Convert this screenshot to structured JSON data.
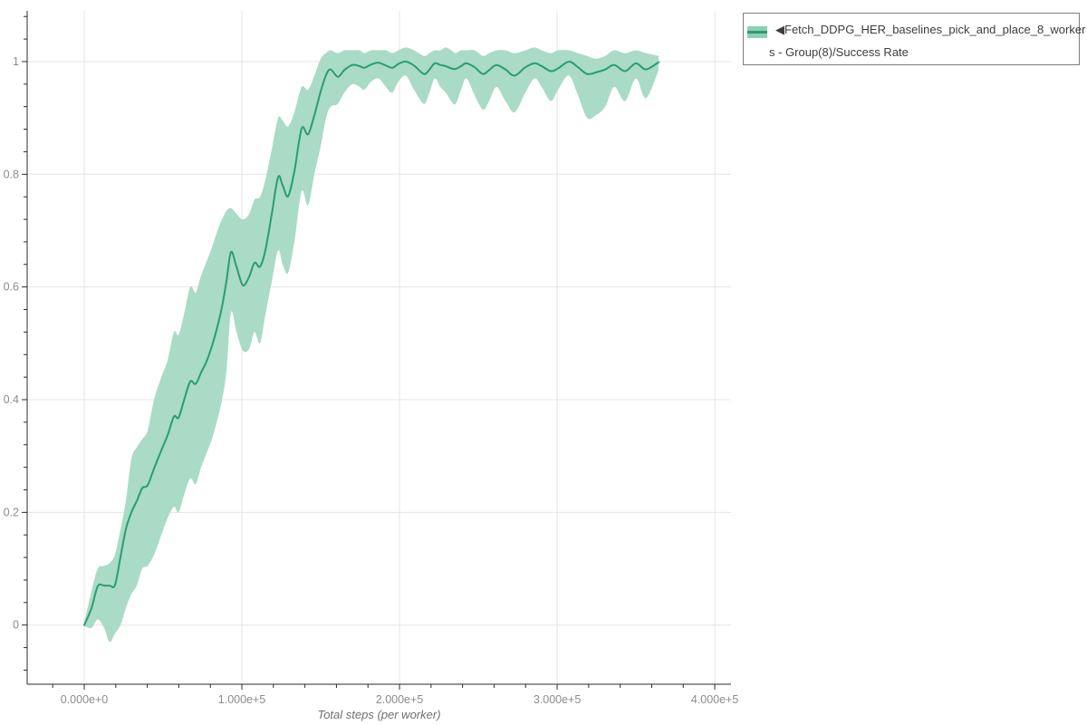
{
  "colors": {
    "line": "#2a9c74",
    "band": "#a9dbc7",
    "legend_swatch": "#8ecfb1",
    "grid": "#e5e5e5",
    "axis": "#2b2b2b",
    "tick_label": "#8c8c8c",
    "axis_title": "#707070",
    "legend_text": "#3d3d3d",
    "legend_border": "#7e7e7e",
    "background": "#ffffff"
  },
  "legend": {
    "label_line1": "◀Fetch_DDPG_HER_baselines_pick_and_place_8_worker",
    "label_line2": "s - Group(8)/Success Rate"
  },
  "chart_data": {
    "type": "line",
    "title": "",
    "xlabel": "Total steps (per worker)",
    "ylabel": "",
    "grid": "on",
    "legend_position": "outside-top-right",
    "x_axis": {
      "min": -36200,
      "max": 410300,
      "major_ticks": [
        0,
        100000,
        200000,
        300000,
        400000
      ],
      "major_tick_labels": [
        "0.000e+0",
        "1.000e+5",
        "2.000e+5",
        "3.000e+5",
        "4.000e+5"
      ],
      "minor_tick_step": 20000
    },
    "y_axis": {
      "min": -0.105,
      "max": 1.09,
      "major_ticks": [
        0,
        0.2,
        0.4,
        0.6,
        0.8,
        1
      ],
      "major_tick_labels": [
        "0",
        "0.2",
        "0.4",
        "0.6",
        "0.8",
        "1"
      ],
      "minor_tick_step": 0.04
    },
    "series": [
      {
        "name": "◀Fetch_DDPG_HER_baselines_pick_and_place_8_workers - Group(8)/Success Rate",
        "color": "#2a9c74",
        "band_color": "#a9dbc7",
        "steps": [
          0,
          4600,
          8600,
          12600,
          16100,
          19500,
          23000,
          26400,
          29900,
          33300,
          36800,
          40200,
          44300,
          48900,
          52900,
          56900,
          59800,
          63200,
          67200,
          70700,
          74100,
          77600,
          81000,
          84500,
          87400,
          90200,
          93100,
          96600,
          100600,
          104600,
          108000,
          111500,
          114900,
          119000,
          123000,
          125900,
          129300,
          133300,
          137900,
          142000,
          146000,
          150000,
          153400,
          156300,
          160900,
          165000,
          170100,
          174700,
          177600,
          182200,
          186800,
          191400,
          195400,
          199400,
          204000,
          209200,
          215500,
          219000,
          222400,
          225900,
          229300,
          232800,
          235600,
          239100,
          242500,
          247700,
          252900,
          256900,
          261500,
          267200,
          273000,
          279900,
          285600,
          290200,
          296000,
          300600,
          307500,
          313200,
          319000,
          324700,
          330500,
          336200,
          343100,
          350000,
          356300,
          364400
        ],
        "mean": [
          0,
          0.03,
          0.069,
          0.07,
          0.07,
          0.071,
          0.121,
          0.17,
          0.2,
          0.22,
          0.243,
          0.248,
          0.278,
          0.31,
          0.337,
          0.37,
          0.368,
          0.398,
          0.432,
          0.428,
          0.448,
          0.468,
          0.495,
          0.53,
          0.565,
          0.61,
          0.662,
          0.636,
          0.603,
          0.618,
          0.643,
          0.636,
          0.665,
          0.73,
          0.795,
          0.78,
          0.761,
          0.805,
          0.881,
          0.871,
          0.905,
          0.947,
          0.976,
          0.986,
          0.973,
          0.985,
          0.994,
          0.992,
          0.989,
          0.995,
          0.998,
          0.993,
          0.989,
          0.996,
          1.0,
          0.993,
          0.978,
          0.986,
          0.997,
          0.994,
          0.992,
          0.988,
          0.987,
          0.992,
          0.997,
          0.99,
          0.978,
          0.985,
          0.994,
          0.986,
          0.975,
          0.99,
          0.997,
          0.992,
          0.983,
          0.988,
          1.0,
          0.99,
          0.978,
          0.981,
          0.986,
          0.994,
          0.983,
          0.997,
          0.986,
          0.999
        ],
        "band_lower": [
          -0.002,
          -0.005,
          0.01,
          -0.005,
          -0.03,
          -0.015,
          0.0,
          0.03,
          0.055,
          0.07,
          0.1,
          0.105,
          0.125,
          0.16,
          0.19,
          0.21,
          0.2,
          0.23,
          0.26,
          0.25,
          0.28,
          0.305,
          0.33,
          0.365,
          0.4,
          0.45,
          0.555,
          0.52,
          0.487,
          0.49,
          0.52,
          0.5,
          0.55,
          0.61,
          0.665,
          0.64,
          0.625,
          0.68,
          0.77,
          0.745,
          0.8,
          0.85,
          0.9,
          0.92,
          0.925,
          0.945,
          0.96,
          0.955,
          0.95,
          0.965,
          0.97,
          0.955,
          0.945,
          0.965,
          0.975,
          0.95,
          0.925,
          0.945,
          0.97,
          0.955,
          0.945,
          0.93,
          0.925,
          0.95,
          0.97,
          0.94,
          0.915,
          0.93,
          0.955,
          0.93,
          0.91,
          0.945,
          0.97,
          0.955,
          0.93,
          0.95,
          0.975,
          0.94,
          0.9,
          0.905,
          0.92,
          0.955,
          0.93,
          0.97,
          0.935,
          0.985
        ],
        "band_upper": [
          0.004,
          0.06,
          0.1,
          0.105,
          0.11,
          0.125,
          0.17,
          0.22,
          0.295,
          0.315,
          0.33,
          0.345,
          0.4,
          0.44,
          0.47,
          0.52,
          0.515,
          0.55,
          0.6,
          0.59,
          0.62,
          0.645,
          0.67,
          0.7,
          0.72,
          0.735,
          0.74,
          0.73,
          0.72,
          0.73,
          0.755,
          0.76,
          0.79,
          0.845,
          0.9,
          0.895,
          0.885,
          0.91,
          0.955,
          0.95,
          0.975,
          1.005,
          1.015,
          1.02,
          1.015,
          1.02,
          1.02,
          1.02,
          1.015,
          1.02,
          1.02,
          1.02,
          1.015,
          1.02,
          1.025,
          1.02,
          1.01,
          1.015,
          1.02,
          1.02,
          1.025,
          1.02,
          1.015,
          1.02,
          1.02,
          1.02,
          1.01,
          1.015,
          1.02,
          1.02,
          1.015,
          1.02,
          1.025,
          1.02,
          1.015,
          1.02,
          1.02,
          1.015,
          1.01,
          1.005,
          1.01,
          1.02,
          1.015,
          1.02,
          1.015,
          1.01
        ]
      }
    ]
  }
}
